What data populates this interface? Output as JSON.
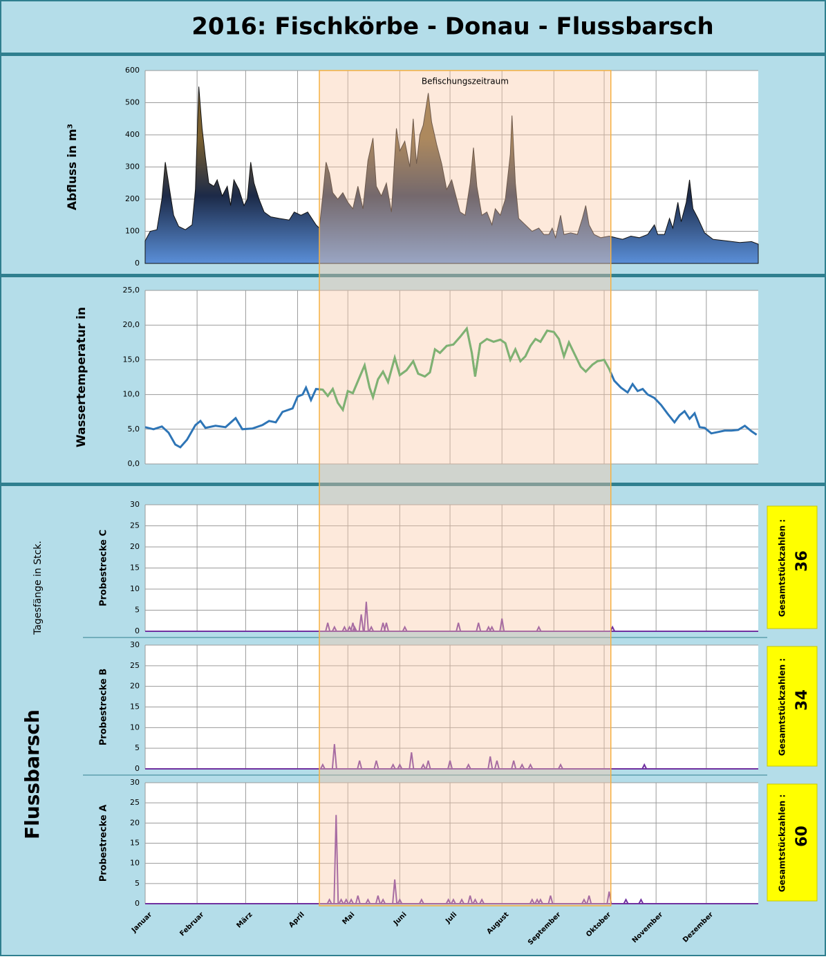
{
  "title": "2016:    Fischkörbe - Donau - Flussbarsch",
  "group_label": "Flussbarsch",
  "group_axis_label": "Tagesfänge in Stck.",
  "chart_data": [
    {
      "type": "area",
      "ylabel": "Abfluss  in m³",
      "xlim": [
        0,
        366
      ],
      "ylim": [
        0,
        600
      ],
      "yticks": [
        0,
        100,
        200,
        300,
        400,
        500,
        600
      ],
      "grid": true,
      "annotation": {
        "text": "Befischungszeitraum",
        "span": [
          104,
          278
        ],
        "color": "#b5533c"
      },
      "x": [
        0,
        3,
        7,
        10,
        12,
        14,
        17,
        20,
        24,
        28,
        30,
        32,
        34,
        36,
        38,
        41,
        43,
        46,
        49,
        51,
        53,
        56,
        59,
        61,
        63,
        65,
        68,
        71,
        75,
        80,
        86,
        89,
        93,
        97,
        102,
        104,
        106,
        108,
        110,
        112,
        115,
        118,
        121,
        124,
        127,
        130,
        133,
        136,
        138,
        141,
        144,
        147,
        150,
        152,
        155,
        158,
        160,
        162,
        164,
        166,
        169,
        171,
        174,
        177,
        180,
        183,
        185,
        188,
        191,
        194,
        196,
        198,
        201,
        204,
        207,
        209,
        212,
        215,
        218,
        219,
        221,
        223,
        227,
        231,
        235,
        238,
        241,
        243,
        245,
        248,
        250,
        254,
        258,
        261,
        263,
        265,
        268,
        272,
        277,
        281,
        285,
        290,
        295,
        300,
        304,
        306,
        310,
        313,
        315,
        318,
        320,
        323,
        325,
        327,
        330,
        334,
        339,
        347,
        355,
        362,
        366
      ],
      "values": [
        70,
        100,
        105,
        200,
        315,
        250,
        150,
        115,
        105,
        120,
        230,
        550,
        420,
        330,
        250,
        240,
        260,
        210,
        240,
        180,
        260,
        230,
        180,
        200,
        315,
        250,
        200,
        160,
        145,
        140,
        135,
        160,
        150,
        160,
        120,
        110,
        210,
        315,
        280,
        220,
        200,
        220,
        190,
        170,
        240,
        170,
        320,
        390,
        240,
        210,
        250,
        160,
        420,
        350,
        380,
        300,
        450,
        310,
        400,
        430,
        530,
        440,
        370,
        310,
        230,
        260,
        220,
        160,
        150,
        250,
        360,
        240,
        150,
        160,
        120,
        170,
        150,
        200,
        340,
        460,
        250,
        140,
        120,
        100,
        110,
        90,
        90,
        110,
        80,
        150,
        90,
        95,
        90,
        140,
        180,
        120,
        90,
        80,
        85,
        80,
        75,
        85,
        80,
        90,
        120,
        90,
        90,
        140,
        110,
        190,
        130,
        190,
        260,
        170,
        140,
        95,
        75,
        70,
        65,
        68,
        60
      ]
    },
    {
      "type": "line",
      "ylabel": "Wassertemperatur in",
      "xlim": [
        0,
        366
      ],
      "ylim": [
        0,
        25
      ],
      "color": "#2e75b6",
      "highlight_color": "#2ea44f",
      "grid": true,
      "yticks": [
        {
          "value": 0,
          "label": "0,0"
        },
        {
          "value": 5,
          "label": "5,0"
        },
        {
          "value": 10,
          "label": "10,0"
        },
        {
          "value": 15,
          "label": "15,0"
        },
        {
          "value": 20,
          "label": "20,0"
        },
        {
          "value": 25,
          "label": "25,0"
        }
      ],
      "x": [
        0,
        5,
        10,
        14,
        18,
        21,
        25,
        30,
        33,
        36,
        42,
        48,
        54,
        58,
        64,
        70,
        74,
        78,
        82,
        88,
        91,
        94,
        96,
        99,
        102,
        106,
        109,
        112,
        115,
        118,
        121,
        124,
        128,
        131,
        134,
        136,
        139,
        142,
        145,
        149,
        152,
        156,
        160,
        163,
        167,
        170,
        173,
        176,
        180,
        184,
        188,
        192,
        195,
        197,
        200,
        204,
        208,
        212,
        215,
        218,
        221,
        224,
        227,
        230,
        233,
        236,
        240,
        244,
        247,
        250,
        253,
        256,
        260,
        263,
        267,
        270,
        274,
        277,
        280,
        284,
        288,
        291,
        294,
        297,
        300,
        304,
        308,
        312,
        316,
        319,
        322,
        325,
        328,
        331,
        334,
        338,
        342,
        346,
        350,
        354,
        358,
        362,
        365
      ],
      "values": [
        5.3,
        5.0,
        5.4,
        4.5,
        2.8,
        2.4,
        3.5,
        5.6,
        6.2,
        5.2,
        5.5,
        5.3,
        6.6,
        5.0,
        5.1,
        5.6,
        6.2,
        6.0,
        7.5,
        8.0,
        9.7,
        10.0,
        11.0,
        9.2,
        10.8,
        10.7,
        9.8,
        10.8,
        8.8,
        7.8,
        10.5,
        10.2,
        12.5,
        14.2,
        11.0,
        9.6,
        12.2,
        13.3,
        11.8,
        15.3,
        12.8,
        13.5,
        14.8,
        13.0,
        12.6,
        13.2,
        16.5,
        16.0,
        17.0,
        17.2,
        18.3,
        19.5,
        16.0,
        12.6,
        17.3,
        18.0,
        17.6,
        17.9,
        17.4,
        15.0,
        16.5,
        14.8,
        15.5,
        17.0,
        18.0,
        17.6,
        19.2,
        19.0,
        18.0,
        15.5,
        17.5,
        16.0,
        14.0,
        13.3,
        14.3,
        14.8,
        15.0,
        13.7,
        12.0,
        11.0,
        10.3,
        11.5,
        10.5,
        10.8,
        10.0,
        9.5,
        8.5,
        7.2,
        6.0,
        7.0,
        7.6,
        6.5,
        7.3,
        5.3,
        5.2,
        4.4,
        4.6,
        4.8,
        4.8,
        4.9,
        5.5,
        4.7,
        4.2
      ]
    },
    {
      "type": "spike",
      "ylabel": "Probestrecke C",
      "xlim": [
        0,
        366
      ],
      "ylim": [
        0,
        30
      ],
      "yticks": [
        0,
        5,
        10,
        15,
        20,
        25,
        30
      ],
      "color": "#7030a0",
      "grid": true,
      "total_label": "Gesamtstückzahlen :",
      "total": 36,
      "x": [
        109,
        113,
        119,
        122,
        124,
        125,
        129,
        132,
        135,
        142,
        144,
        155,
        187,
        199,
        205,
        207,
        213,
        235,
        279
      ],
      "values": [
        2,
        1,
        1,
        1,
        2,
        1,
        4,
        7,
        1,
        2,
        2,
        1,
        2,
        2,
        1,
        1,
        3,
        1,
        1
      ]
    },
    {
      "type": "spike",
      "ylabel": "Probestrecke B",
      "xlim": [
        0,
        366
      ],
      "ylim": [
        0,
        30
      ],
      "yticks": [
        0,
        5,
        10,
        15,
        20,
        25,
        30
      ],
      "color": "#7030a0",
      "grid": true,
      "total_label": "Gesamtstückzahlen :",
      "total": 34,
      "x": [
        106,
        113,
        128,
        138,
        148,
        152,
        159,
        166,
        169,
        182,
        193,
        206,
        210,
        220,
        225,
        230,
        248,
        298
      ],
      "values": [
        1,
        6,
        2,
        2,
        1,
        1,
        4,
        1,
        2,
        2,
        1,
        3,
        2,
        2,
        1,
        1,
        1,
        1
      ]
    },
    {
      "type": "spike",
      "ylabel": "Probestrecke A",
      "xlim": [
        0,
        366
      ],
      "ylim": [
        0,
        30
      ],
      "yticks": [
        0,
        5,
        10,
        15,
        20,
        25,
        30
      ],
      "color": "#7030a0",
      "grid": true,
      "total_label": "Gesamtstückzahlen :",
      "total": 60,
      "xticks": [
        {
          "value": 0,
          "label": "Januar"
        },
        {
          "value": 31,
          "label": "Februar"
        },
        {
          "value": 60,
          "label": "März"
        },
        {
          "value": 91,
          "label": "April"
        },
        {
          "value": 121,
          "label": "Mai"
        },
        {
          "value": 152,
          "label": "Juni"
        },
        {
          "value": 182,
          "label": "Juli"
        },
        {
          "value": 213,
          "label": "August"
        },
        {
          "value": 244,
          "label": "September"
        },
        {
          "value": 274,
          "label": "Oktober"
        },
        {
          "value": 305,
          "label": "November"
        },
        {
          "value": 335,
          "label": "Dezember"
        }
      ],
      "x": [
        110,
        114,
        117,
        120,
        123,
        127,
        133,
        139,
        142,
        149,
        152,
        165,
        181,
        184,
        189,
        194,
        197,
        201,
        231,
        234,
        236,
        242,
        262,
        265,
        277,
        287,
        296
      ],
      "values": [
        1,
        22,
        1,
        1,
        1,
        2,
        1,
        2,
        1,
        6,
        1,
        1,
        1,
        1,
        1,
        2,
        1,
        1,
        1,
        1,
        1,
        2,
        1,
        2,
        3,
        1,
        1
      ]
    }
  ]
}
